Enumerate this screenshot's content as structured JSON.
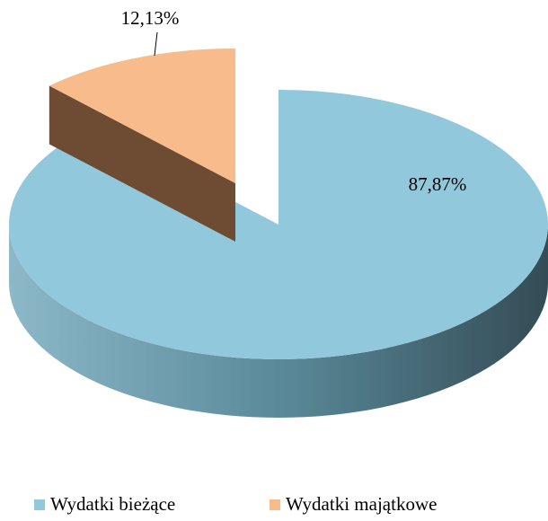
{
  "chart_data": {
    "type": "pie",
    "categories": [
      "Wydatki bieżące",
      "Wydatki majątkowe"
    ],
    "values": [
      87.87,
      12.13
    ],
    "value_labels": [
      "87,87%",
      "12,13%"
    ],
    "colors": [
      "#92c8dc",
      "#f8bc8c"
    ],
    "legend": "bottom"
  }
}
